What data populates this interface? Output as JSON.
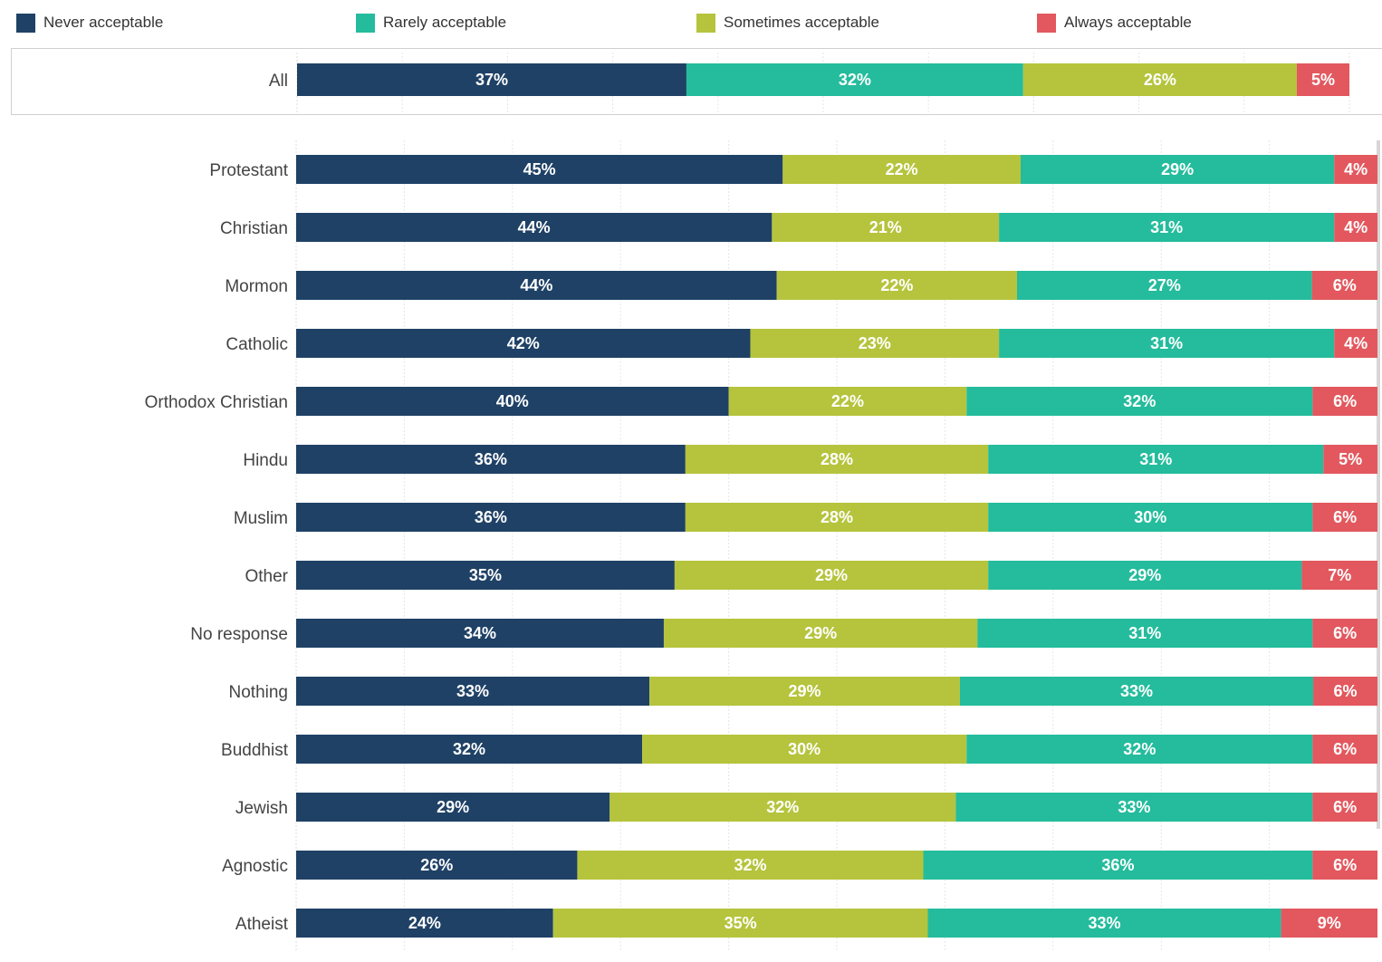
{
  "legend": [
    {
      "key": "never",
      "label": "Never acceptable",
      "color": "#1f4166"
    },
    {
      "key": "rarely",
      "label": "Rarely acceptable",
      "color": "#24bc9c"
    },
    {
      "key": "sometimes",
      "label": "Sometimes acceptable",
      "color": "#b5c43c"
    },
    {
      "key": "always",
      "label": "Always acceptable",
      "color": "#e2585e"
    }
  ],
  "chart_data": [
    {
      "type": "bar",
      "orientation": "horizontal",
      "stacked": true,
      "categories": [
        "All"
      ],
      "series_order": [
        "never",
        "rarely",
        "sometimes",
        "always"
      ],
      "series": [
        {
          "name": "Never acceptable",
          "color": "#1f4166",
          "values": [
            37
          ]
        },
        {
          "name": "Rarely acceptable",
          "color": "#24bc9c",
          "values": [
            32
          ]
        },
        {
          "name": "Sometimes acceptable",
          "color": "#b5c43c",
          "values": [
            26
          ]
        },
        {
          "name": "Always acceptable",
          "color": "#e2585e",
          "values": [
            5
          ]
        }
      ],
      "xlim": [
        0,
        100
      ],
      "grid": true
    },
    {
      "type": "bar",
      "orientation": "horizontal",
      "stacked": true,
      "categories": [
        "Protestant",
        "Christian",
        "Mormon",
        "Catholic",
        "Orthodox Christian",
        "Hindu",
        "Muslim",
        "Other",
        "No response",
        "Nothing",
        "Buddhist",
        "Jewish",
        "Agnostic",
        "Atheist"
      ],
      "series_order": [
        "never",
        "sometimes",
        "rarely",
        "always"
      ],
      "series": [
        {
          "name": "Never acceptable",
          "color": "#1f4166",
          "values": [
            45,
            44,
            44,
            42,
            40,
            36,
            36,
            35,
            34,
            33,
            32,
            29,
            26,
            24
          ]
        },
        {
          "name": "Rarely acceptable",
          "color": "#24bc9c",
          "values": [
            29,
            31,
            27,
            31,
            32,
            31,
            30,
            29,
            31,
            33,
            32,
            33,
            36,
            33
          ]
        },
        {
          "name": "Sometimes acceptable",
          "color": "#b5c43c",
          "values": [
            22,
            21,
            22,
            23,
            22,
            28,
            28,
            29,
            29,
            29,
            30,
            32,
            32,
            35
          ]
        },
        {
          "name": "Always acceptable",
          "color": "#e2585e",
          "values": [
            4,
            4,
            6,
            4,
            6,
            5,
            6,
            7,
            6,
            6,
            6,
            6,
            6,
            9
          ]
        }
      ],
      "xlim": [
        0,
        100
      ],
      "grid": true
    }
  ]
}
